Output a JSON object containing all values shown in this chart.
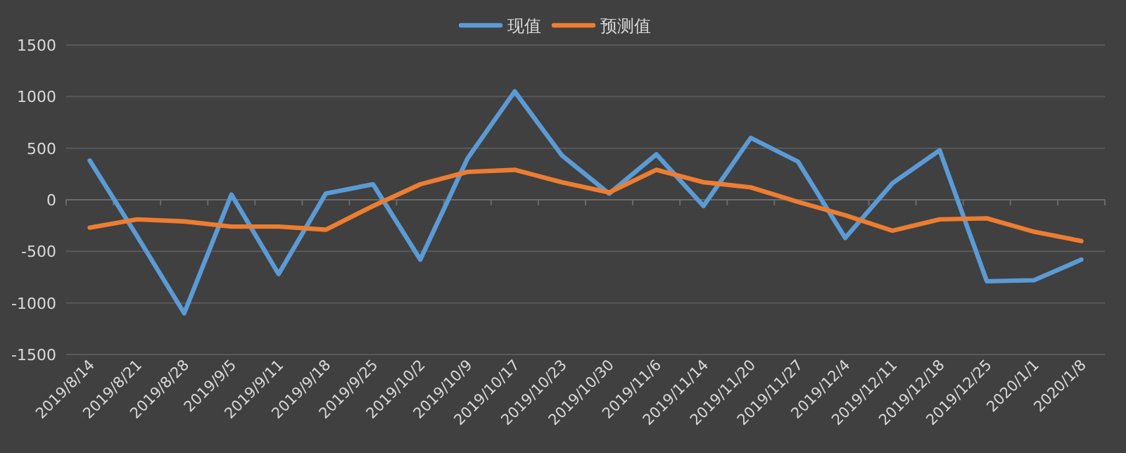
{
  "chart_data": {
    "type": "line",
    "categories": [
      "2019/8/14",
      "2019/8/21",
      "2019/8/28",
      "2019/9/5",
      "2019/9/11",
      "2019/9/18",
      "2019/9/25",
      "2019/10/2",
      "2019/10/9",
      "2019/10/17",
      "2019/10/23",
      "2019/10/30",
      "2019/11/6",
      "2019/11/14",
      "2019/11/20",
      "2019/11/27",
      "2019/12/4",
      "2019/12/11",
      "2019/12/18",
      "2019/12/25",
      "2020/1/1",
      "2020/1/8"
    ],
    "series": [
      {
        "name": "现值",
        "color": "#5b9bd5",
        "values": [
          380,
          -350,
          -1100,
          50,
          -720,
          60,
          150,
          -580,
          400,
          1050,
          430,
          60,
          440,
          -60,
          600,
          370,
          -370,
          160,
          480,
          -790,
          -780,
          -580
        ]
      },
      {
        "name": "预测值",
        "color": "#ed7d31",
        "values": [
          -270,
          -190,
          -210,
          -260,
          -260,
          -290,
          -60,
          150,
          270,
          290,
          170,
          70,
          290,
          170,
          120,
          -20,
          -150,
          -300,
          -190,
          -180,
          -310,
          -400
        ]
      }
    ],
    "ylim": [
      -1500,
      1500
    ],
    "yticks": [
      -1500,
      -1000,
      -500,
      0,
      500,
      1000,
      1500
    ],
    "grid": "y",
    "legend": "top",
    "marker": "none",
    "line_style": "solid"
  }
}
